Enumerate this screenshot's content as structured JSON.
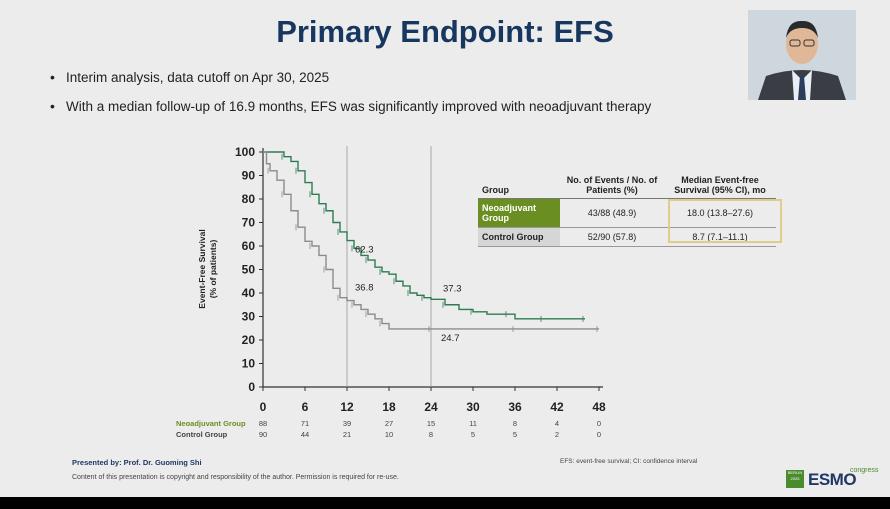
{
  "slide": {
    "title": "Primary Endpoint: EFS",
    "bullets": [
      "Interim analysis, data cutoff on Apr 30, 2025",
      "With a median follow-up of 16.9 months, EFS was significantly improved with neoadjuvant therapy"
    ]
  },
  "table": {
    "headers": [
      "Group",
      "No. of Events / No. of Patients (%)",
      "Median Event-free Survival (95% CI), mo"
    ],
    "rows": [
      {
        "group": "Neoadjuvant Group",
        "events": "43/88 (48.9)",
        "median": "18.0 (13.8–27.6)"
      },
      {
        "group": "Control Group",
        "events": "52/90 (57.8)",
        "median": "8.7 (7.1–11.1)"
      }
    ],
    "highlight_color": "#e0cc8c"
  },
  "chart_data": {
    "type": "line",
    "title": "",
    "ylabel": "Event-Free Survival (% of patients)",
    "xlabel": "",
    "xlim": [
      0,
      48
    ],
    "ylim": [
      0,
      100
    ],
    "x_ticks": [
      0,
      6,
      12,
      18,
      24,
      30,
      36,
      42,
      48
    ],
    "y_ticks": [
      0,
      10,
      20,
      30,
      40,
      50,
      60,
      70,
      80,
      90,
      100
    ],
    "reference_lines_x": [
      12,
      24
    ],
    "series": [
      {
        "name": "Neoadjuvant Group",
        "color": "#2e7d52",
        "points": [
          [
            0,
            100
          ],
          [
            2,
            100
          ],
          [
            3,
            98
          ],
          [
            4,
            96
          ],
          [
            5,
            92
          ],
          [
            6,
            87
          ],
          [
            7,
            82
          ],
          [
            8,
            78
          ],
          [
            9,
            75
          ],
          [
            10,
            70
          ],
          [
            11,
            66
          ],
          [
            12,
            62.3
          ],
          [
            13,
            59
          ],
          [
            14,
            56
          ],
          [
            15,
            54
          ],
          [
            16,
            51
          ],
          [
            17,
            49
          ],
          [
            18,
            48
          ],
          [
            19,
            45
          ],
          [
            20,
            43
          ],
          [
            21,
            40
          ],
          [
            22,
            39
          ],
          [
            23,
            38
          ],
          [
            24,
            37.3
          ],
          [
            26,
            35
          ],
          [
            28,
            33
          ],
          [
            30,
            32
          ],
          [
            32,
            31
          ],
          [
            35,
            31
          ],
          [
            36,
            29
          ],
          [
            40,
            29
          ],
          [
            42,
            29
          ],
          [
            46,
            29
          ]
        ],
        "annotations": [
          {
            "x": 12,
            "y": 62.3,
            "label": "62.3"
          },
          {
            "x": 24,
            "y": 37.3,
            "label": "37.3"
          }
        ],
        "at_risk": [
          88,
          71,
          39,
          27,
          15,
          11,
          8,
          4,
          0
        ]
      },
      {
        "name": "Control Group",
        "color": "#8c8c8c",
        "points": [
          [
            0,
            100
          ],
          [
            0.5,
            95
          ],
          [
            1,
            92
          ],
          [
            2,
            88
          ],
          [
            3,
            82
          ],
          [
            4,
            75
          ],
          [
            5,
            68
          ],
          [
            6,
            62
          ],
          [
            7,
            60
          ],
          [
            8,
            56
          ],
          [
            9,
            50
          ],
          [
            10,
            42
          ],
          [
            11,
            38
          ],
          [
            12,
            36.8
          ],
          [
            13,
            35
          ],
          [
            14,
            33
          ],
          [
            15,
            31
          ],
          [
            16,
            29
          ],
          [
            17,
            27
          ],
          [
            18,
            24.7
          ],
          [
            24,
            24.7
          ],
          [
            30,
            24.7
          ],
          [
            36,
            24.7
          ],
          [
            42,
            24.7
          ],
          [
            48,
            24.7
          ]
        ],
        "annotations": [
          {
            "x": 12,
            "y": 36.8,
            "label": "36.8"
          },
          {
            "x": 24,
            "y": 24.7,
            "label": "24.7"
          }
        ],
        "at_risk": [
          90,
          44,
          21,
          10,
          8,
          5,
          5,
          2,
          0
        ]
      }
    ]
  },
  "footer": {
    "presenter": "Presented by: Prof. Dr. Guoming Shi",
    "copyright": "Content of this presentation is copyright and responsibility of the author. Permission is required for re-use.",
    "abbreviations": "EFS: event-free survival; CI: confidence interval"
  },
  "logo": {
    "text": "ESMO",
    "sub": "congress",
    "box": "BERLIN 2025"
  }
}
